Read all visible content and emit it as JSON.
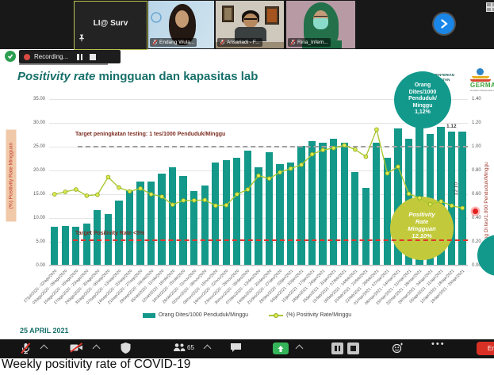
{
  "video_strip": {
    "tiles": [
      {
        "name": "LI@ Surv",
        "pinned": true
      },
      {
        "name": "Endang Wula...",
        "muted": true
      },
      {
        "name": "Ansariadi - F...",
        "muted": true
      },
      {
        "name": "Rina_Infem...",
        "muted": true
      }
    ]
  },
  "recording": {
    "label": "Recording..."
  },
  "slide": {
    "title_italic": "Positivity rate",
    "title_rest": " mingguan dan kapasitas lab",
    "date": "25 APRIL 2021",
    "badge_tested": {
      "lines": [
        "Orang",
        "Dites/1000",
        "Penduduk/",
        "Minggu",
        "1,12%"
      ]
    },
    "badge_positivity": {
      "lines": [
        "Positivity",
        "Rate",
        "Mingguan",
        "12,10%"
      ]
    },
    "logos": {
      "kemenkes": "KEMENTERIAN KESEHATAN",
      "germas": "GERMAS",
      "germas_sub": "Gerakan Masyarakat Hidup Sehat"
    },
    "annotations": {
      "testing_target": "Target peningkatan testing: 1 tes/1000 Penduduk/Minggu",
      "positivity_target": "Target Positivity Rate <5%",
      "last_bar_label": "1.12",
      "last_line_label": "12.10"
    }
  },
  "chart_data": {
    "type": "bar",
    "title": "Positivity rate mingguan dan kapasitas lab",
    "categories": [
      "27/jul/2020 - 02/ags/2020",
      "03/ags/2020 - 09/ags/2020",
      "10/ags/2020 - 16/ags/2020",
      "17/ags/2020 - 23/ags/2020",
      "24/ags/2020 - 30/ags/2020",
      "31/ags/2020 - 06/sep/2020",
      "07/sep/2020 - 13/sep/2020",
      "14/sep/2020 - 20/sep/2020",
      "21/sep/2020 - 27/sep/2020",
      "28/sep/2020 - 04/okt/2020",
      "05/okt/2020 - 11/okt/2020",
      "12/okt/2020 - 18/okt/2020",
      "19/okt/2020 - 25/okt/2020",
      "26/okt/2020 - 01/nov/2020",
      "02/nov/2020 - 08/nov/2020",
      "09/nov/2020 - 15/nov/2020",
      "16/nov/2020 - 22/nov/2020",
      "23/nov/2020 - 29/nov/2020",
      "30/nov/2020 - 06/des/2020",
      "07/des/2020 - 13/des/2020",
      "14/des/2020 - 20/des/2020",
      "21/des/2020 - 27/des/2020",
      "28/des/2020 - 03/jan/2021",
      "04/jan/2021 - 10/jan/2021",
      "11/jan/2021 - 17/jan/2021",
      "18/jan/2021 - 24/jan/2021",
      "25/jan/2021 - 31/jan/2021",
      "01/feb/2021 - 07/feb/2021",
      "08/feb/2021 - 14/feb/2021",
      "15/feb/2021 - 21/feb/2021",
      "22/feb/2021 - 28/feb/2021",
      "01/mar/2021 - 07/mar/2021",
      "08/mar/2021 - 14/mar/2021",
      "15/mar/2021 - 21/mar/2021",
      "22/mar/2021 - 28/mar/2021",
      "29/mar/2021 - 04/apr/2021",
      "05/apr/2021 - 11/apr/2021",
      "12/apr/2021 - 18/apr/2021",
      "19/apr/2021 - 25/apr/2021"
    ],
    "series": [
      {
        "name": "Orang Dites/1000 Penduduk/Minggu",
        "type": "bar",
        "axis": "right",
        "values": [
          0.32,
          0.33,
          0.32,
          0.35,
          0.46,
          0.43,
          0.54,
          0.63,
          0.7,
          0.7,
          0.77,
          0.82,
          0.75,
          0.62,
          0.67,
          0.86,
          0.88,
          0.9,
          0.96,
          0.82,
          0.95,
          0.85,
          0.86,
          1.0,
          1.04,
          1.03,
          1.06,
          1.03,
          0.78,
          0.65,
          1.03,
          0.9,
          1.15,
          1.06,
          1.16,
          1.1,
          1.16,
          1.12,
          1.12
        ]
      },
      {
        "name": "(%) Positivity Rate/Minggu",
        "type": "line",
        "axis": "left",
        "values": [
          15.0,
          15.5,
          16.0,
          14.7,
          14.9,
          18.6,
          16.4,
          15.6,
          16.2,
          15.0,
          14.5,
          12.8,
          13.7,
          13.7,
          13.8,
          12.6,
          12.7,
          15.0,
          16.0,
          18.9,
          18.3,
          19.6,
          20.4,
          21.2,
          23.4,
          24.3,
          24.7,
          25.3,
          24.4,
          22.9,
          28.6,
          19.4,
          20.8,
          15.1,
          14.2,
          12.9,
          13.5,
          12.6,
          12.1
        ]
      }
    ],
    "left_axis": {
      "label": "(%) Positivity Rate Mingguan",
      "min": 0,
      "max": 35,
      "tick_labels": [
        "35.00",
        "30.00",
        "25.00",
        "20.00",
        "15.00",
        "10.00",
        "5.00",
        "0.00"
      ]
    },
    "right_axis": {
      "label": "Orang Di tes/1.000 Penduduk/Minggu",
      "min": 0,
      "max": 1.4,
      "tick_labels": [
        "1.40",
        "1.20",
        "1.00",
        "0.80",
        "0.60",
        "0.40",
        "0.20",
        "0.00"
      ]
    },
    "target_lines": [
      {
        "value_left": 25.0,
        "label": "Target peningkatan testing: 1 tes/1000 Penduduk/Minggu",
        "style": "gray-dashed"
      },
      {
        "value_left": 5.4,
        "label": "Target Positivity Rate <5%",
        "style": "red-dashed"
      }
    ],
    "colors": {
      "bar": "#13988a",
      "line": "#a9c832",
      "marker": "#dde94e",
      "marker_stroke": "#86a61f"
    },
    "legend_position": "bottom",
    "grid": true
  },
  "toolbar": {
    "participants_count": "65",
    "end_label": "End"
  },
  "caption": "Weekly positivity rate of COVID-19"
}
